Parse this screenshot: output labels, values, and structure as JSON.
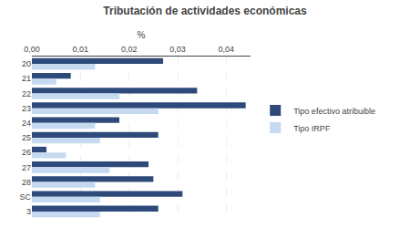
{
  "chart_data": {
    "type": "bar",
    "orientation": "horizontal",
    "title": "Tributación de actividades económicas",
    "xlabel": "%",
    "categories": [
      "20",
      "21",
      "22",
      "23",
      "24",
      "25",
      "26",
      "27",
      "28",
      "SC",
      "3"
    ],
    "series": [
      {
        "name": "Tipo efectivo atribuible",
        "color": "#2E4A7A",
        "values": [
          0.027,
          0.008,
          0.034,
          0.044,
          0.018,
          0.026,
          0.003,
          0.024,
          0.025,
          0.031,
          0.026
        ]
      },
      {
        "name": "Tipo IRPF",
        "color": "#C5D9F1",
        "values": [
          0.013,
          0.005,
          0.018,
          0.026,
          0.013,
          0.014,
          0.007,
          0.016,
          0.013,
          0.014,
          0.014
        ]
      }
    ],
    "xlim": [
      0,
      0.045
    ],
    "xticks": [
      {
        "value": 0.0,
        "label": "0,00"
      },
      {
        "value": 0.01,
        "label": "0,01"
      },
      {
        "value": 0.02,
        "label": "0,02"
      },
      {
        "value": 0.03,
        "label": "0,03"
      },
      {
        "value": 0.04,
        "label": "0,04"
      }
    ],
    "grid": true,
    "legend": "right"
  }
}
